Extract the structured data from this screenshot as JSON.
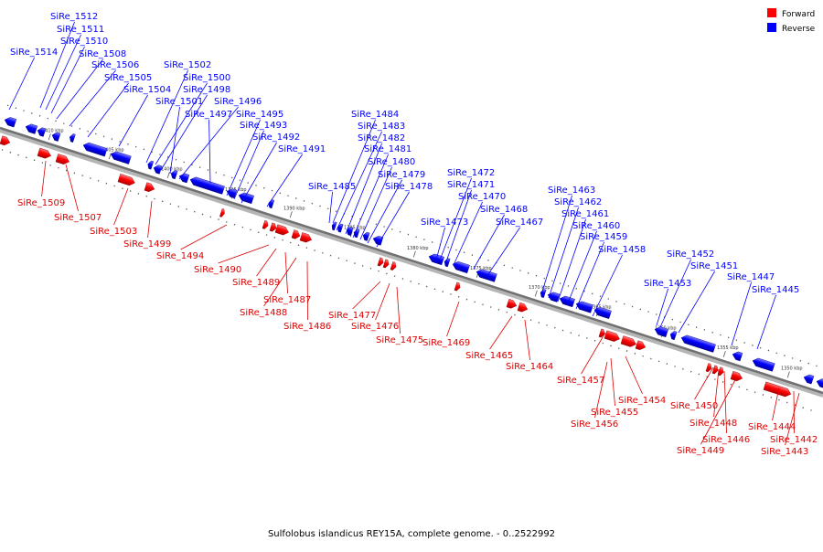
{
  "legend": {
    "forward": "Forward",
    "reverse": "Reverse",
    "forward_color": "#ff0000",
    "reverse_color": "#0000ff"
  },
  "caption": "Sulfolobus islandicus REY15A, complete genome. - 0..2522992",
  "ticks": [
    "1410 kbp",
    "1405 kbp",
    "1400 kbp",
    "1395 kbp",
    "1390 kbp",
    "1385 kbp",
    "1380 kbp",
    "1375 kbp",
    "1370 kbp",
    "1365 kbp",
    "1360 kbp",
    "1355 kbp",
    "1350 kbp"
  ],
  "reverse_labels": [
    "SiRe_1512",
    "SiRe_1511",
    "SiRe_1510",
    "SiRe_1508",
    "SiRe_1514",
    "SiRe_1506",
    "SiRe_1505",
    "SiRe_1504",
    "SiRe_1502",
    "SiRe_1500",
    "SiRe_1498",
    "SiRe_1501",
    "SiRe_1496",
    "SiRe_1497",
    "SiRe_1495",
    "SiRe_1493",
    "SiRe_1492",
    "SiRe_1491",
    "SiRe_1484",
    "SiRe_1483",
    "SiRe_1482",
    "SiRe_1481",
    "SiRe_1480",
    "SiRe_1479",
    "SiRe_1485",
    "SiRe_1478",
    "SiRe_1472",
    "SiRe_1471",
    "SiRe_1470",
    "SiRe_1468",
    "SiRe_1473",
    "SiRe_1467",
    "SiRe_1463",
    "SiRe_1462",
    "SiRe_1461",
    "SiRe_1460",
    "SiRe_1459",
    "SiRe_1458",
    "SiRe_1452",
    "SiRe_1451",
    "SiRe_1453",
    "SiRe_1447",
    "SiRe_1445"
  ],
  "forward_labels": [
    "SiRe_1509",
    "SiRe_1507",
    "SiRe_1503",
    "SiRe_1499",
    "SiRe_1494",
    "SiRe_1490",
    "SiRe_1489",
    "SiRe_1487",
    "SiRe_1488",
    "SiRe_1486",
    "SiRe_1477",
    "SiRe_1476",
    "SiRe_1475",
    "SiRe_1469",
    "SiRe_1465",
    "SiRe_1464",
    "SiRe_1457",
    "SiRe_1454",
    "SiRe_1455",
    "SiRe_1456",
    "SiRe_1450",
    "SiRe_1448",
    "SiRe_1446",
    "SiRe_1449",
    "SiRe_1444",
    "SiRe_1442",
    "SiRe_1443"
  ]
}
